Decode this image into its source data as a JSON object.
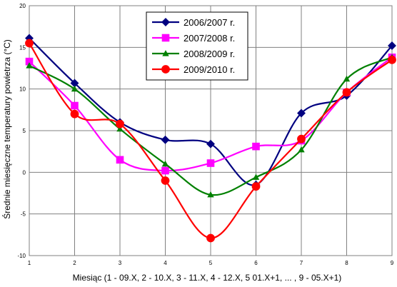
{
  "chart_data": {
    "type": "line",
    "xlabel": "Miesiąc (1 - 09.X, 2 - 10.X, 3 - 11.X, 4 - 12.X, 5 01.X+1, ... , 9 - 05.X+1)",
    "ylabel": "Średnie miesięczne temperatury powietrza (°C)",
    "xlim": [
      1,
      9
    ],
    "ylim": [
      -10,
      20
    ],
    "x": [
      1,
      2,
      3,
      4,
      5,
      6,
      7,
      8,
      9
    ],
    "x_ticks": [
      "1",
      "2",
      "3",
      "4",
      "5",
      "6",
      "7",
      "8",
      "9"
    ],
    "y_ticks": [
      "-10",
      "-5",
      "0",
      "5",
      "10",
      "15",
      "20"
    ],
    "grid": true,
    "legend_position": "top-center",
    "series": [
      {
        "name": "2006/2007 r.",
        "color": "#000080",
        "marker": "diamond",
        "values": [
          16.1,
          10.7,
          6.0,
          3.9,
          3.4,
          -1.5,
          7.1,
          9.2,
          15.2
        ]
      },
      {
        "name": "2007/2008 r.",
        "color": "#ff00ff",
        "marker": "square",
        "values": [
          13.3,
          8.0,
          1.5,
          0.2,
          1.1,
          3.1,
          3.8,
          9.6,
          13.8
        ]
      },
      {
        "name": "2008/2009 r.",
        "color": "#008000",
        "marker": "triangle",
        "values": [
          12.8,
          10.0,
          5.2,
          1.0,
          -2.7,
          -0.6,
          2.7,
          11.2,
          13.8
        ]
      },
      {
        "name": "2009/2010 r.",
        "color": "#ff0000",
        "marker": "circle",
        "values": [
          15.5,
          7.0,
          5.8,
          -1.0,
          -7.9,
          -1.7,
          4.0,
          9.6,
          13.5
        ]
      }
    ]
  }
}
